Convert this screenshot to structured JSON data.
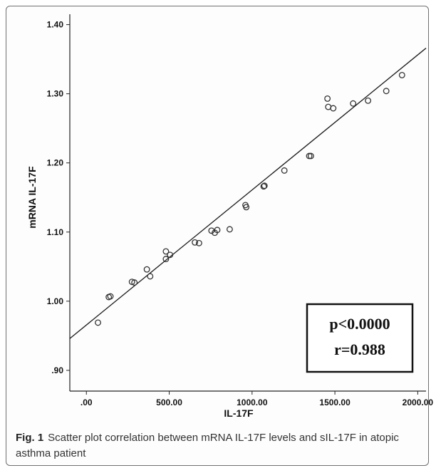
{
  "chart_data": {
    "type": "scatter",
    "xlabel": "IL-17F",
    "ylabel": "mRNA IL-17F",
    "xlim": [
      -100,
      2050
    ],
    "ylim": [
      0.87,
      1.415
    ],
    "x_ticks": [
      ".00",
      "500.00",
      "1000.00",
      "1500.00",
      "2000.00"
    ],
    "x_tick_values": [
      0,
      500,
      1000,
      1500,
      2000
    ],
    "y_ticks": [
      ".90",
      "1.00",
      "1.10",
      "1.20",
      "1.30",
      "1.40"
    ],
    "y_tick_values": [
      0.9,
      1.0,
      1.1,
      1.2,
      1.3,
      1.4
    ],
    "grid": false,
    "legend": "none",
    "points": [
      {
        "x": 70,
        "y": 0.969
      },
      {
        "x": 135,
        "y": 1.006
      },
      {
        "x": 145,
        "y": 1.007
      },
      {
        "x": 275,
        "y": 1.028
      },
      {
        "x": 290,
        "y": 1.027
      },
      {
        "x": 365,
        "y": 1.046
      },
      {
        "x": 385,
        "y": 1.036
      },
      {
        "x": 480,
        "y": 1.072
      },
      {
        "x": 480,
        "y": 1.061
      },
      {
        "x": 505,
        "y": 1.067
      },
      {
        "x": 655,
        "y": 1.085
      },
      {
        "x": 680,
        "y": 1.084
      },
      {
        "x": 755,
        "y": 1.102
      },
      {
        "x": 775,
        "y": 1.099
      },
      {
        "x": 790,
        "y": 1.103
      },
      {
        "x": 865,
        "y": 1.104
      },
      {
        "x": 960,
        "y": 1.139
      },
      {
        "x": 965,
        "y": 1.136
      },
      {
        "x": 1070,
        "y": 1.166
      },
      {
        "x": 1075,
        "y": 1.167
      },
      {
        "x": 1195,
        "y": 1.189
      },
      {
        "x": 1345,
        "y": 1.21
      },
      {
        "x": 1355,
        "y": 1.21
      },
      {
        "x": 1455,
        "y": 1.293
      },
      {
        "x": 1460,
        "y": 1.281
      },
      {
        "x": 1490,
        "y": 1.279
      },
      {
        "x": 1610,
        "y": 1.286
      },
      {
        "x": 1700,
        "y": 1.29
      },
      {
        "x": 1810,
        "y": 1.304
      },
      {
        "x": 1905,
        "y": 1.327
      }
    ],
    "fit_line": {
      "x": [
        -100,
        2050
      ],
      "y": [
        0.946,
        1.366
      ]
    },
    "annotation": {
      "line1": "p<0.0000",
      "line2": "r=0.988"
    }
  },
  "caption": {
    "label": "Fig. 1",
    "text": "Scatter plot correlation between mRNA IL-17F levels and sIL-17F in atopic asthma patient"
  }
}
